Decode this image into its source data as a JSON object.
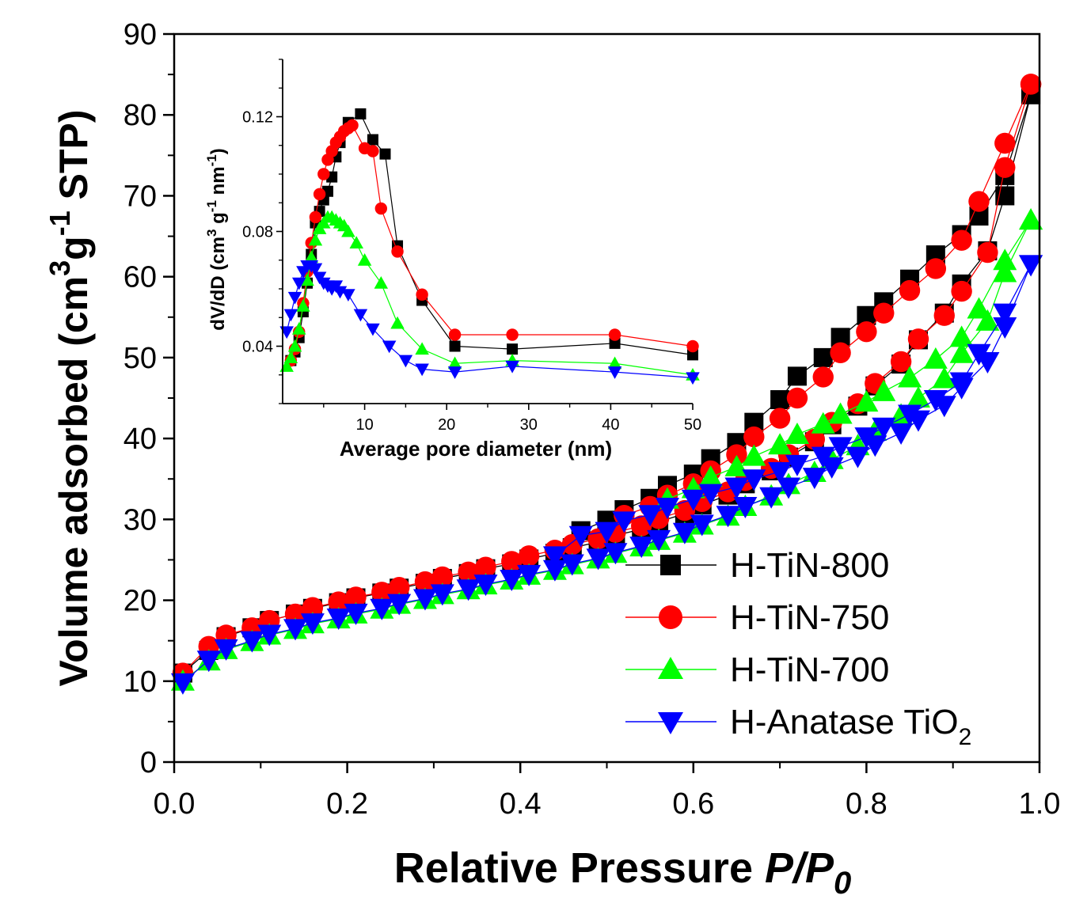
{
  "chart_data": [
    {
      "type": "scatter",
      "role": "main",
      "title": "",
      "xlabel": "Relative Pressure",
      "xlabel_italic": "P/P",
      "xlabel_sub": "0",
      "ylabel": "Volume adsorbed  (cm",
      "ylabel_sup1": "3",
      "ylabel_mid": "g",
      "ylabel_sup2": "-1",
      "ylabel_end": " STP)",
      "xlim": [
        0,
        1.0
      ],
      "ylim": [
        0,
        90
      ],
      "xticks": [
        0.0,
        0.2,
        0.4,
        0.6,
        0.8,
        1.0
      ],
      "xtick_labels": [
        "0.0",
        "0.2",
        "0.4",
        "0.6",
        "0.8",
        "1.0"
      ],
      "yticks": [
        0,
        10,
        20,
        30,
        40,
        50,
        60,
        70,
        80,
        90
      ],
      "ytick_labels": [
        "0",
        "10",
        "20",
        "30",
        "40",
        "50",
        "60",
        "70",
        "80",
        "90"
      ],
      "legend": {
        "position": "bottom-right",
        "entries": [
          {
            "label": "H-TiN-800"
          },
          {
            "label": "H-TiN-750"
          },
          {
            "label": "H-TiN-700"
          },
          {
            "label": "H-Anatase TiO",
            "sub": "2"
          }
        ]
      },
      "series": [
        {
          "name": "H-TiN-800",
          "color": "#000000",
          "marker": "square",
          "adsorption": {
            "x": [
              0.01,
              0.04,
              0.06,
              0.09,
              0.11,
              0.14,
              0.16,
              0.19,
              0.21,
              0.24,
              0.26,
              0.29,
              0.31,
              0.34,
              0.36,
              0.39,
              0.41,
              0.44,
              0.46,
              0.49,
              0.51,
              0.54,
              0.56,
              0.59,
              0.61,
              0.64,
              0.66,
              0.69,
              0.71,
              0.74,
              0.76,
              0.79,
              0.81,
              0.84,
              0.86,
              0.89,
              0.91,
              0.94,
              0.96,
              0.99
            ],
            "y": [
              11.0,
              13.8,
              15.5,
              16.6,
              17.5,
              18.3,
              19.0,
              19.7,
              20.3,
              20.9,
              21.5,
              22.1,
              22.7,
              23.3,
              23.9,
              24.5,
              25.1,
              25.8,
              26.5,
              27.2,
              28.0,
              28.8,
              29.7,
              30.7,
              31.8,
              33.0,
              34.4,
              36.0,
              37.7,
              39.6,
              41.7,
              44.0,
              46.5,
              49.2,
              52.2,
              55.5,
              59.1,
              63.2,
              70.0,
              82.5
            ]
          },
          "desorption": {
            "x": [
              0.99,
              0.96,
              0.93,
              0.91,
              0.88,
              0.85,
              0.82,
              0.8,
              0.77,
              0.75,
              0.72,
              0.7,
              0.67,
              0.65,
              0.62,
              0.6,
              0.57,
              0.55,
              0.52,
              0.5,
              0.47
            ],
            "y": [
              82.5,
              72.5,
              67.5,
              65.2,
              62.7,
              59.7,
              56.9,
              55.2,
              52.5,
              50.0,
              47.7,
              44.8,
              42.0,
              39.5,
              37.5,
              35.6,
              34.2,
              32.6,
              31.2,
              29.9,
              28.6
            ]
          }
        },
        {
          "name": "H-TiN-750",
          "color": "#ff0000",
          "marker": "circle",
          "adsorption": {
            "x": [
              0.01,
              0.04,
              0.06,
              0.09,
              0.11,
              0.14,
              0.16,
              0.19,
              0.21,
              0.24,
              0.26,
              0.29,
              0.31,
              0.34,
              0.36,
              0.39,
              0.41,
              0.44,
              0.46,
              0.49,
              0.51,
              0.54,
              0.56,
              0.59,
              0.61,
              0.64,
              0.66,
              0.69,
              0.71,
              0.74,
              0.76,
              0.79,
              0.81,
              0.84,
              0.86,
              0.89,
              0.91,
              0.94,
              0.96,
              0.99
            ],
            "y": [
              11.0,
              14.3,
              15.7,
              16.6,
              17.5,
              18.3,
              19.1,
              19.8,
              20.4,
              21.0,
              21.6,
              22.3,
              22.9,
              23.5,
              24.1,
              24.8,
              25.5,
              26.2,
              26.9,
              27.6,
              28.4,
              29.2,
              30.1,
              31.1,
              32.2,
              33.4,
              34.8,
              36.3,
              38.0,
              39.9,
              42.0,
              44.3,
              46.8,
              49.5,
              52.3,
              55.2,
              58.2,
              63.0,
              73.5,
              83.8
            ]
          },
          "desorption": {
            "x": [
              0.99,
              0.96,
              0.93,
              0.91,
              0.88,
              0.85,
              0.82,
              0.8,
              0.77,
              0.75,
              0.72,
              0.7,
              0.67,
              0.65,
              0.62,
              0.6,
              0.57,
              0.55,
              0.52
            ],
            "y": [
              83.8,
              76.5,
              69.3,
              64.5,
              61.0,
              58.3,
              55.5,
              53.2,
              50.6,
              47.6,
              45.0,
              42.5,
              40.2,
              38.0,
              36.0,
              34.4,
              33.0,
              31.6,
              30.5
            ]
          }
        },
        {
          "name": "H-TiN-700",
          "color": "#00ff00",
          "marker": "triangle-up",
          "adsorption": {
            "x": [
              0.01,
              0.04,
              0.06,
              0.09,
              0.11,
              0.14,
              0.16,
              0.19,
              0.21,
              0.24,
              0.26,
              0.29,
              0.31,
              0.34,
              0.36,
              0.39,
              0.41,
              0.44,
              0.46,
              0.49,
              0.51,
              0.54,
              0.56,
              0.59,
              0.61,
              0.64,
              0.66,
              0.69,
              0.71,
              0.74,
              0.76,
              0.79,
              0.81,
              0.84,
              0.86,
              0.89,
              0.91,
              0.94,
              0.96,
              0.99
            ],
            "y": [
              10.0,
              12.5,
              13.9,
              14.9,
              15.7,
              16.4,
              17.1,
              17.7,
              18.3,
              18.9,
              19.5,
              20.1,
              20.7,
              21.3,
              21.9,
              22.5,
              23.1,
              23.7,
              24.4,
              25.1,
              25.8,
              26.6,
              27.4,
              28.3,
              29.3,
              30.4,
              31.6,
              32.9,
              34.3,
              35.8,
              37.4,
              39.1,
              40.9,
              42.9,
              45.0,
              47.4,
              50.5,
              54.5,
              60.5,
              67.0
            ]
          },
          "desorption": {
            "x": [
              0.99,
              0.96,
              0.93,
              0.91,
              0.88,
              0.85,
              0.82,
              0.8,
              0.77,
              0.75,
              0.72,
              0.7,
              0.67,
              0.65,
              0.62,
              0.6,
              0.57
            ],
            "y": [
              67.0,
              62.0,
              56.0,
              52.5,
              49.8,
              47.5,
              45.8,
              44.5,
              43.0,
              41.8,
              40.5,
              39.2,
              37.8,
              36.5,
              35.2,
              33.8,
              32.5
            ]
          }
        },
        {
          "name": "H-Anatase TiO2",
          "color": "#0000ff",
          "marker": "triangle-down",
          "adsorption": {
            "x": [
              0.01,
              0.04,
              0.06,
              0.09,
              0.11,
              0.14,
              0.16,
              0.19,
              0.21,
              0.24,
              0.26,
              0.29,
              0.31,
              0.34,
              0.36,
              0.39,
              0.41,
              0.44,
              0.46,
              0.49,
              0.51,
              0.54,
              0.56,
              0.59,
              0.61,
              0.64,
              0.66,
              0.69,
              0.71,
              0.74,
              0.76,
              0.79,
              0.81,
              0.84,
              0.86,
              0.89,
              0.91,
              0.94,
              0.96,
              0.99
            ],
            "y": [
              9.8,
              12.6,
              14.0,
              15.0,
              15.8,
              16.5,
              17.2,
              17.8,
              18.4,
              19.0,
              19.6,
              20.2,
              20.8,
              21.4,
              22.0,
              22.6,
              23.2,
              23.8,
              24.5,
              25.2,
              25.9,
              26.7,
              27.5,
              28.4,
              29.4,
              30.5,
              31.6,
              32.8,
              34.0,
              35.2,
              36.5,
              37.8,
              39.2,
              40.7,
              42.3,
              44.1,
              46.3,
              49.5,
              53.8,
              61.5
            ]
          },
          "desorption": {
            "x": [
              0.99,
              0.96,
              0.93,
              0.91,
              0.88,
              0.85,
              0.82,
              0.8,
              0.77,
              0.75,
              0.72,
              0.7,
              0.67,
              0.65,
              0.62,
              0.6,
              0.57,
              0.55,
              0.52,
              0.5,
              0.47,
              0.44
            ],
            "y": [
              61.5,
              55.5,
              50.5,
              47.0,
              44.8,
              43.0,
              41.4,
              40.2,
              39.0,
              37.8,
              36.8,
              35.9,
              35.0,
              34.0,
              33.2,
              32.5,
              31.5,
              30.6,
              29.8,
              28.5,
              28.0,
              25.5
            ]
          }
        }
      ]
    },
    {
      "type": "line",
      "role": "inset",
      "title": "",
      "xlabel": "Average pore diameter (nm)",
      "ylabel": "dV/dD (cm",
      "ylabel_sup1": "3",
      "ylabel_mid": " g",
      "ylabel_sup2": "-1",
      "ylabel_mid2": " nm",
      "ylabel_sup3": "-1",
      "ylabel_end": ")",
      "xlim": [
        0,
        50
      ],
      "ylim": [
        0.02,
        0.14
      ],
      "xticks": [
        10,
        20,
        30,
        40,
        50
      ],
      "xtick_labels": [
        "10",
        "20",
        "30",
        "40",
        "50"
      ],
      "yticks": [
        0.04,
        0.08,
        0.12
      ],
      "ytick_labels": [
        "0.04",
        "0.08",
        "0.12"
      ],
      "series": [
        {
          "name": "H-TiN-800",
          "color": "#000000",
          "marker": "square",
          "x": [
            1.0,
            1.5,
            2.0,
            2.5,
            3.0,
            3.5,
            4.0,
            4.5,
            5.0,
            5.5,
            6.0,
            6.5,
            7.0,
            8.0,
            9.5,
            11.0,
            12.5,
            14.0,
            17.0,
            21.0,
            28.0,
            40.5,
            50.0
          ],
          "y": [
            0.035,
            0.038,
            0.043,
            0.052,
            0.062,
            0.072,
            0.083,
            0.087,
            0.091,
            0.094,
            0.099,
            0.106,
            0.111,
            0.118,
            0.121,
            0.112,
            0.107,
            0.075,
            0.056,
            0.04,
            0.039,
            0.041,
            0.037
          ]
        },
        {
          "name": "H-TiN-750",
          "color": "#ff0000",
          "marker": "circle",
          "x": [
            1.0,
            1.5,
            2.0,
            2.5,
            3.0,
            3.5,
            4.0,
            4.5,
            5.0,
            5.5,
            6.0,
            6.5,
            7.0,
            7.5,
            8.0,
            8.5,
            10.0,
            11.0,
            12.0,
            14.0,
            17.0,
            21.0,
            28.0,
            40.5,
            50.0
          ],
          "y": [
            0.035,
            0.039,
            0.045,
            0.055,
            0.066,
            0.076,
            0.085,
            0.093,
            0.1,
            0.105,
            0.108,
            0.111,
            0.113,
            0.115,
            0.116,
            0.117,
            0.109,
            0.108,
            0.088,
            0.073,
            0.058,
            0.044,
            0.044,
            0.044,
            0.04
          ]
        },
        {
          "name": "H-TiN-700",
          "color": "#00ff00",
          "marker": "triangle-up",
          "x": [
            0.5,
            1.0,
            1.5,
            2.0,
            2.5,
            3.0,
            3.5,
            4.0,
            4.5,
            5.0,
            5.5,
            6.0,
            6.5,
            7.0,
            7.5,
            8.0,
            9.0,
            10.0,
            12.0,
            14.0,
            17.0,
            21.0,
            28.0,
            40.5,
            50.0
          ],
          "y": [
            0.033,
            0.036,
            0.04,
            0.046,
            0.054,
            0.063,
            0.071,
            0.077,
            0.081,
            0.083,
            0.085,
            0.085,
            0.084,
            0.083,
            0.082,
            0.08,
            0.076,
            0.07,
            0.062,
            0.048,
            0.039,
            0.034,
            0.035,
            0.034,
            0.03
          ]
        },
        {
          "name": "H-Anatase TiO2",
          "color": "#0000ff",
          "marker": "triangle-down",
          "x": [
            0.5,
            1.0,
            1.5,
            2.0,
            2.5,
            3.0,
            3.5,
            4.0,
            4.5,
            5.0,
            5.5,
            6.0,
            6.5,
            7.0,
            8.0,
            9.5,
            11.0,
            13.0,
            15.0,
            17.0,
            21.0,
            28.0,
            40.5,
            50.0
          ],
          "y": [
            0.045,
            0.051,
            0.057,
            0.062,
            0.066,
            0.068,
            0.068,
            0.067,
            0.064,
            0.062,
            0.061,
            0.06,
            0.061,
            0.059,
            0.058,
            0.051,
            0.046,
            0.04,
            0.035,
            0.032,
            0.031,
            0.033,
            0.031,
            0.029
          ]
        }
      ]
    }
  ]
}
